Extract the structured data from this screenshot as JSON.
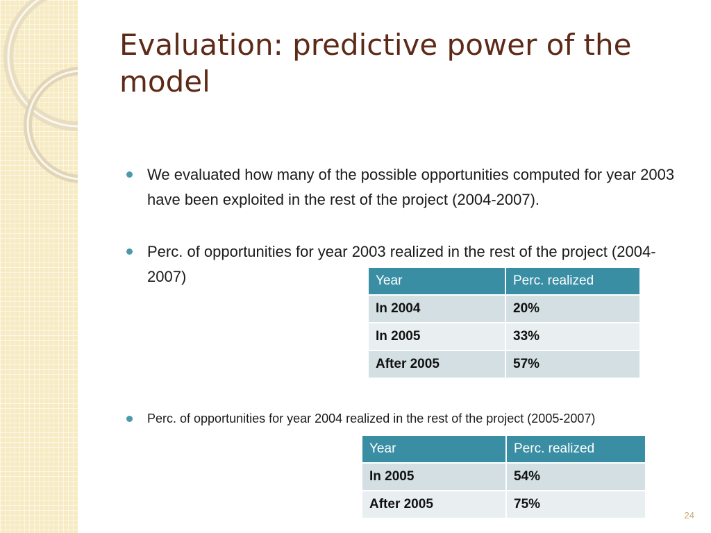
{
  "slide": {
    "title": "Evaluation: predictive power of the model",
    "bullets": [
      "We evaluated how many of the possible opportunities computed for year 2003 have been exploited in the rest of the project (2004-2007).",
      "Perc. of opportunities for year 2003 realized in the rest of the project (2004-2007)",
      "Perc. of opportunities for year 2004 realized in the rest of the project (2005-2007)"
    ],
    "table1": {
      "headers": [
        "Year",
        "Perc. realized"
      ],
      "rows": [
        [
          "In 2004",
          "20%"
        ],
        [
          "In 2005",
          "33%"
        ],
        [
          "After 2005",
          "57%"
        ]
      ]
    },
    "table2": {
      "headers": [
        "Year",
        "Perc. realized"
      ],
      "rows": [
        [
          "In 2005",
          "54%"
        ],
        [
          "After 2005",
          "75%"
        ]
      ]
    },
    "page_number": "24"
  },
  "colors": {
    "title": "#5e2a18",
    "table_header": "#3a8ea4",
    "row_dark": "#d3dfe3",
    "row_light": "#e9eff1",
    "bullet": "#4a9aaa",
    "side_strip": "#f7ebc4"
  }
}
